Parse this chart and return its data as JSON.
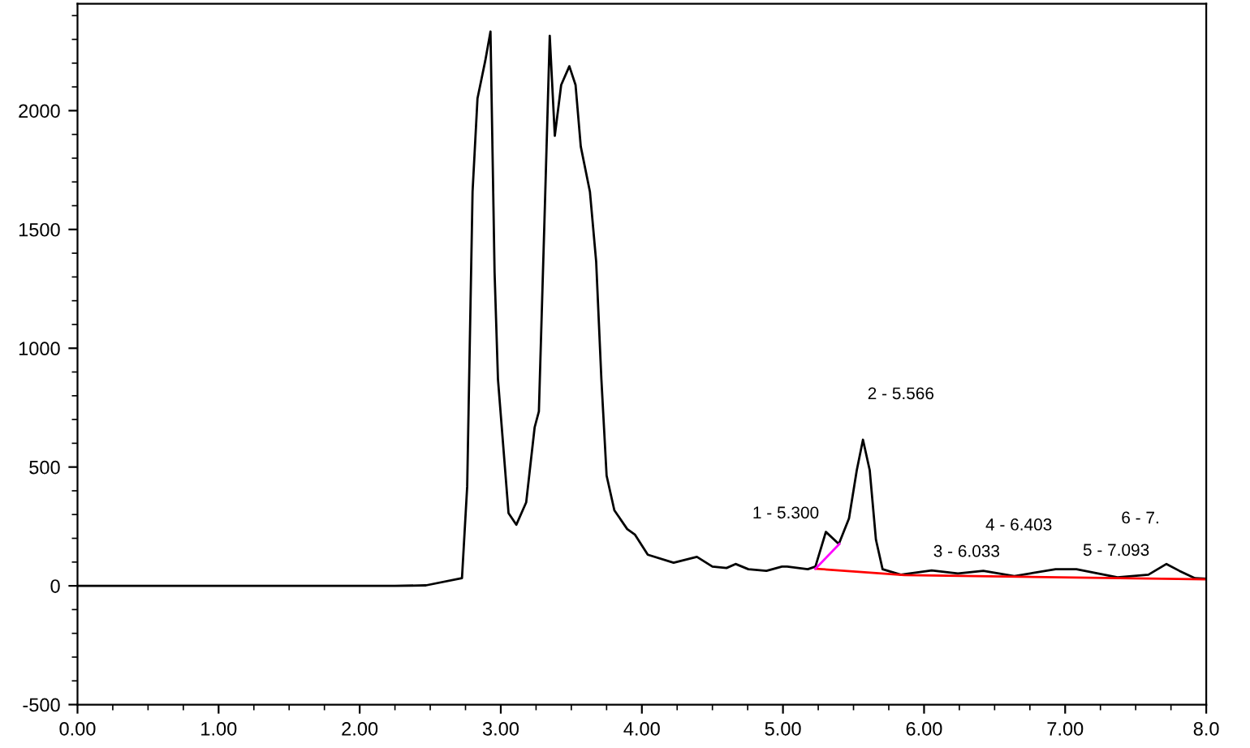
{
  "chart_data": {
    "type": "line",
    "xlim": [
      0,
      8
    ],
    "ylim": [
      -500,
      2450
    ],
    "xticks": [
      {
        "value": 0,
        "label": "0.00"
      },
      {
        "value": 1,
        "label": "1.00"
      },
      {
        "value": 2,
        "label": "2.00"
      },
      {
        "value": 3,
        "label": "3.00"
      },
      {
        "value": 4,
        "label": "4.00"
      },
      {
        "value": 5,
        "label": "5.00"
      },
      {
        "value": 6,
        "label": "6.00"
      },
      {
        "value": 7,
        "label": "7.00"
      },
      {
        "value": 8,
        "label": "8.0"
      }
    ],
    "yticks": [
      -500,
      0,
      500,
      1000,
      1500,
      2000
    ],
    "grid": false,
    "legend": false,
    "marker": "none",
    "line_style": "solid",
    "series": [
      {
        "color": "#000000",
        "x": [
          0,
          2.25,
          2.47,
          2.725,
          2.762,
          2.8,
          2.835,
          2.89,
          2.927,
          2.956,
          2.98,
          3.055,
          3.11,
          3.18,
          3.24,
          3.27,
          3.31,
          3.347,
          3.383,
          3.428,
          3.486,
          3.53,
          3.567,
          3.632,
          3.676,
          3.713,
          3.75,
          3.805,
          3.896,
          3.95,
          4.042,
          4.225,
          4.39,
          4.5,
          4.6,
          4.664,
          4.755,
          4.883,
          4.993,
          5.03,
          5.176,
          5.23,
          5.304,
          5.396,
          5.468,
          5.523,
          5.567,
          5.615,
          5.659,
          5.706,
          5.835,
          6.054,
          6.24,
          6.42,
          6.64,
          6.932,
          7.08,
          7.371,
          7.59,
          7.718,
          7.81,
          7.92,
          8.0
        ],
        "values": [
          0,
          0,
          2,
          32,
          419,
          1658,
          2052,
          2210,
          2333,
          1320,
          870,
          306,
          257,
          351,
          667,
          734,
          1545,
          2315,
          1894,
          2108,
          2187,
          2108,
          1849,
          1658,
          1365,
          870,
          464,
          318,
          239,
          216,
          131,
          97,
          122,
          81,
          75,
          92,
          70,
          63,
          81,
          81,
          70,
          81,
          227,
          176,
          284,
          486,
          615,
          486,
          194,
          70,
          47,
          65,
          52,
          63,
          41,
          70,
          70,
          36,
          47,
          92,
          63,
          32,
          30
        ]
      },
      {
        "color": "#ff0000",
        "x": [
          5.23,
          5.7,
          5.86,
          8.0
        ],
        "values": [
          72,
          52,
          45,
          27
        ]
      },
      {
        "color": "#ff00ff",
        "x": [
          5.23,
          5.4
        ],
        "values": [
          72,
          176
        ]
      }
    ],
    "annotations": [
      {
        "text": "1 - 5.300",
        "x": 5.304,
        "y": 227
      },
      {
        "text": "2 - 5.566",
        "x": 5.567,
        "y": 615
      },
      {
        "text": "3 - 6.033",
        "x": 6.033,
        "y": 65
      },
      {
        "text": "4 - 6.403",
        "x": 6.403,
        "y": 63
      },
      {
        "text": "5 - 7.093",
        "x": 7.093,
        "y": 70
      },
      {
        "text": "6 - 7.",
        "x": 7.718,
        "y": 92
      }
    ]
  }
}
